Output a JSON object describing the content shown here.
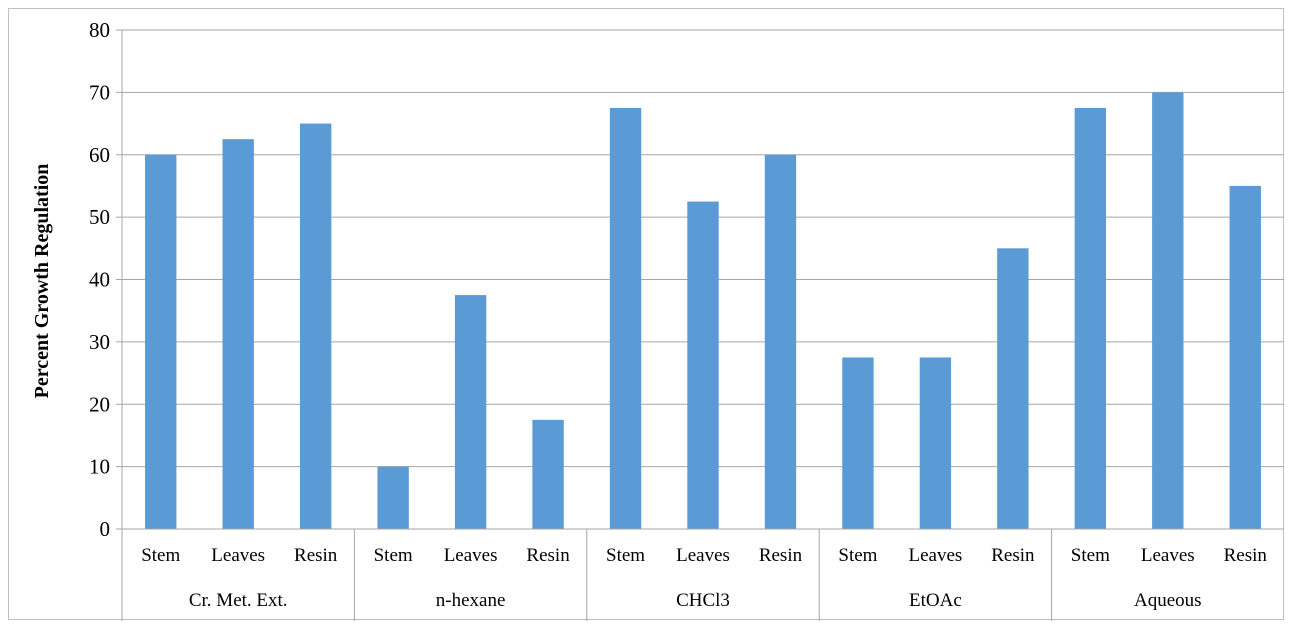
{
  "chart_data": {
    "type": "bar",
    "ylabel": "Percent Growth Regulation",
    "xlabel": "",
    "ylim": [
      0,
      80
    ],
    "yticks": [
      0,
      10,
      20,
      30,
      40,
      50,
      60,
      70,
      80
    ],
    "grid": true,
    "legend": "none",
    "bar_color": "#5b9bd5",
    "groups": [
      {
        "label": "Cr. Met. Ext.",
        "categories": [
          "Stem",
          "Leaves",
          "Resin"
        ],
        "values": [
          60,
          62.5,
          65
        ]
      },
      {
        "label": "n-hexane",
        "categories": [
          "Stem",
          "Leaves",
          "Resin"
        ],
        "values": [
          10,
          37.5,
          17.5
        ]
      },
      {
        "label": "CHCl3",
        "categories": [
          "Stem",
          "Leaves",
          "Resin"
        ],
        "values": [
          67.5,
          52.5,
          60
        ]
      },
      {
        "label": "EtOAc",
        "categories": [
          "Stem",
          "Leaves",
          "Resin"
        ],
        "values": [
          27.5,
          27.5,
          45
        ]
      },
      {
        "label": "Aqueous",
        "categories": [
          "Stem",
          "Leaves",
          "Resin"
        ],
        "values": [
          67.5,
          70,
          55
        ]
      }
    ]
  }
}
